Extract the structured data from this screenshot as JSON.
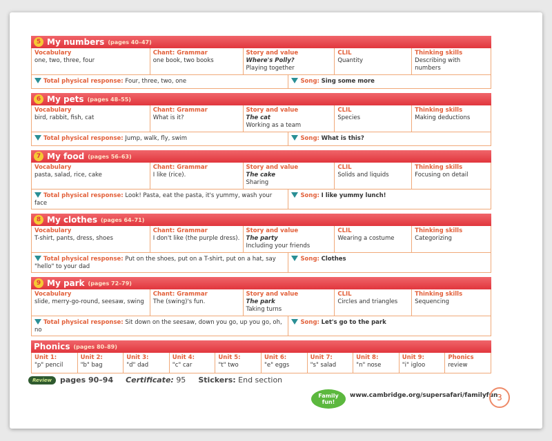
{
  "columns": [
    "Vocabulary",
    "Chant: Grammar",
    "Story and value",
    "CLIL",
    "Thinking skills"
  ],
  "labels": {
    "tpr": "Total physical response:",
    "song": "Song:"
  },
  "units": [
    {
      "number": "5",
      "title": "My numbers",
      "pages": "(pages 40–47)",
      "cells": [
        [
          "one, two, three, four"
        ],
        [
          "one book, two books"
        ],
        [
          "Where's Polly?",
          "Playing together"
        ],
        [
          "Quantity"
        ],
        [
          "Describing with numbers"
        ]
      ],
      "tpr": "Four, three, two, one",
      "song": "Sing some more"
    },
    {
      "number": "6",
      "title": "My pets",
      "pages": "(pages 48–55)",
      "cells": [
        [
          "bird, rabbit, fish, cat"
        ],
        [
          "What is it?"
        ],
        [
          "The cat",
          "Working as a team"
        ],
        [
          "Species"
        ],
        [
          "Making deductions"
        ]
      ],
      "tpr": "Jump, walk, fly, swim",
      "song": "What is this?"
    },
    {
      "number": "7",
      "title": "My food",
      "pages": "(pages 56–63)",
      "cells": [
        [
          "pasta, salad, rice, cake"
        ],
        [
          "I like (rice)."
        ],
        [
          "The cake",
          "Sharing"
        ],
        [
          "Solids and liquids"
        ],
        [
          "Focusing on detail"
        ]
      ],
      "tpr": "Look! Pasta, eat the pasta, it's yummy, wash your face",
      "song": "I like yummy lunch!"
    },
    {
      "number": "8",
      "title": "My clothes",
      "pages": "(pages 64–71)",
      "cells": [
        [
          "T-shirt, pants, dress, shoes"
        ],
        [
          "I don't like (the purple dress)."
        ],
        [
          "The party",
          "Including your friends"
        ],
        [
          "Wearing a costume"
        ],
        [
          "Categorizing"
        ]
      ],
      "tpr": "Put on the shoes, put on a T-shirt, put on a hat, say \"hello\" to your dad",
      "song": "Clothes"
    },
    {
      "number": "9",
      "title": "My park",
      "pages": "(pages 72–79)",
      "cells": [
        [
          "slide, merry-go-round, seesaw, swing"
        ],
        [
          "The (swing)'s fun."
        ],
        [
          "The park",
          "Taking turns"
        ],
        [
          "Circles and triangles"
        ],
        [
          "Sequencing"
        ]
      ],
      "tpr": "Sit down on the seesaw, down you go, up you go, oh, no",
      "song": "Let's go to the park"
    }
  ],
  "phonics": {
    "title": "Phonics",
    "pages": "(pages 80–89)",
    "cells": [
      {
        "unit": "Unit 1:",
        "sound": "\"p\" pencil"
      },
      {
        "unit": "Unit 2:",
        "sound": "\"b\" bag"
      },
      {
        "unit": "Unit 3:",
        "sound": "\"d\" dad"
      },
      {
        "unit": "Unit 4:",
        "sound": "\"c\" car"
      },
      {
        "unit": "Unit 5:",
        "sound": "\"t\" two"
      },
      {
        "unit": "Unit 6:",
        "sound": "\"e\" eggs"
      },
      {
        "unit": "Unit 7:",
        "sound": "\"s\" salad"
      },
      {
        "unit": "Unit 8:",
        "sound": "\"n\" nose"
      },
      {
        "unit": "Unit 9:",
        "sound": "\"i\" igloo"
      },
      {
        "unit": "Phonics",
        "sound": "review"
      }
    ]
  },
  "footer": {
    "review": "Review",
    "review_pages": "pages 90–94",
    "certificate_label": "Certificate:",
    "certificate": "95",
    "stickers_label": "Stickers:",
    "stickers": "End section",
    "logo": "Family fun!",
    "url": "www.cambridge.org/supersafari/familyfun",
    "page_number": "3"
  }
}
